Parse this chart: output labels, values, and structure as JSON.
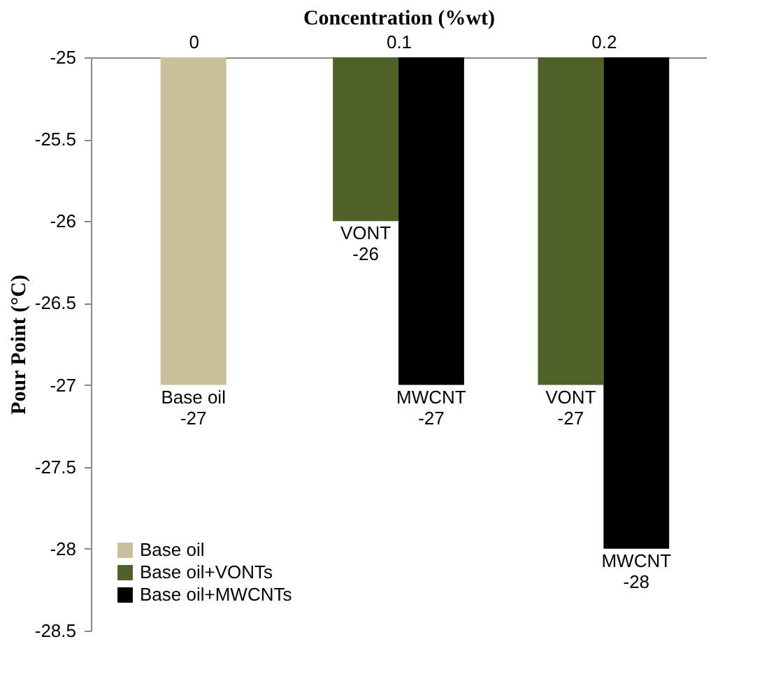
{
  "chart_data": {
    "type": "bar",
    "xlabel": "Concentration (%wt)",
    "ylabel": "Pour Point (°C)",
    "categories": [
      "0",
      "0.1",
      "0.2"
    ],
    "series": [
      {
        "name": "Base oil",
        "color": "#c9c09a",
        "values": [
          -27,
          null,
          null
        ],
        "value_labels": [
          "Base oil\n-27",
          null,
          null
        ]
      },
      {
        "name": "Base oil+VONTs",
        "color": "#4f6228",
        "values": [
          null,
          -26,
          -27
        ],
        "value_labels": [
          null,
          "VONT\n-26",
          "VONT\n-27"
        ]
      },
      {
        "name": "Base oil+MWCNTs",
        "color": "#000000",
        "values": [
          null,
          -27,
          -28
        ],
        "value_labels": [
          null,
          "MWCNT\n-27",
          "MWCNT\n-28"
        ]
      }
    ],
    "ylim": [
      -28.5,
      -25
    ],
    "yticks": [
      {
        "value": -28.5,
        "label": "-28.5"
      },
      {
        "value": -28,
        "label": "-28"
      },
      {
        "value": -27.5,
        "label": "-27.5"
      },
      {
        "value": -27,
        "label": "-27"
      },
      {
        "value": -26.5,
        "label": "-26.5"
      },
      {
        "value": -26,
        "label": "-26"
      },
      {
        "value": -25.5,
        "label": "-25.5"
      },
      {
        "value": -25,
        "label": "-25"
      }
    ],
    "grid": false,
    "legend": "bottom left"
  }
}
